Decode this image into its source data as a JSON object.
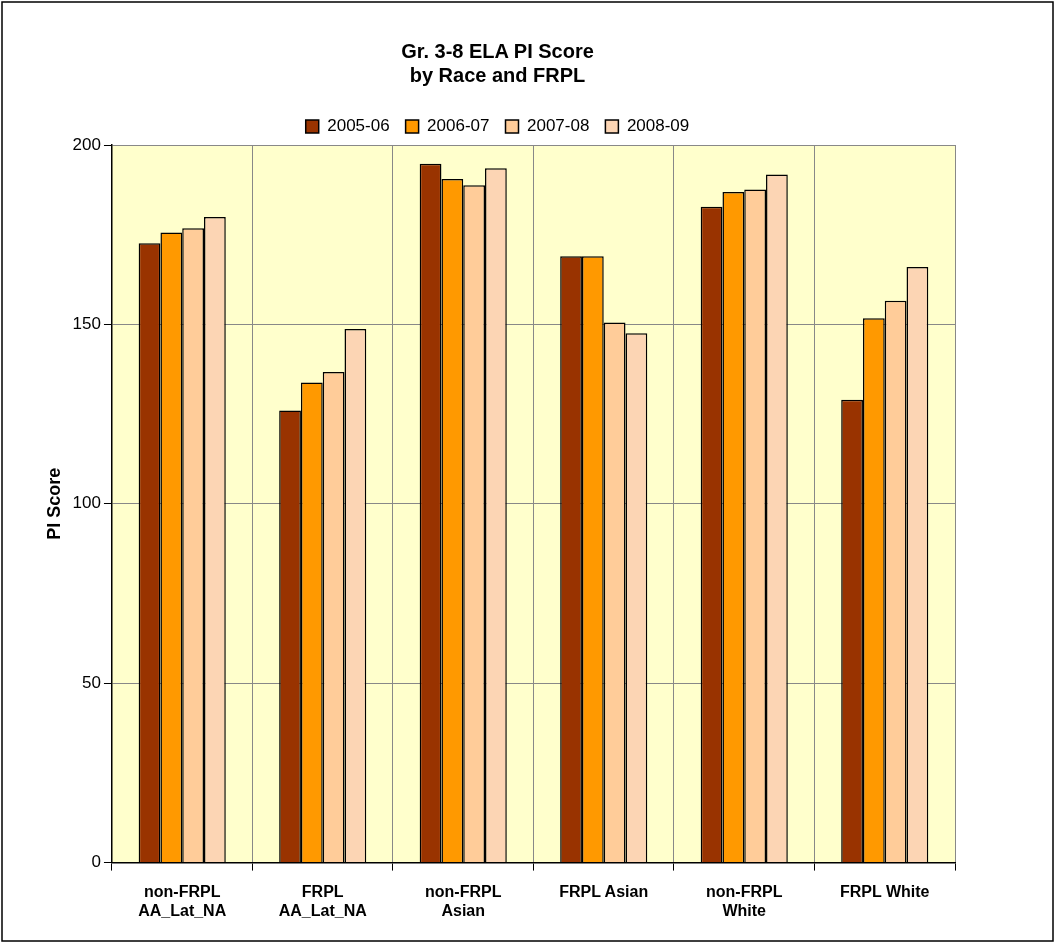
{
  "chart_data": {
    "type": "bar",
    "title": "Gr. 3-8 ELA PI Score\nby Race and FRPL",
    "ylabel": "PI Score",
    "categories": [
      "non-FRPL AA_Lat_NA",
      "FRPL AA_Lat_NA",
      "non-FRPL Asian",
      "FRPL Asian",
      "non-FRPL White",
      "FRPL White"
    ],
    "series": [
      {
        "name": "2005-06",
        "color": "#993300",
        "values": [
          172.6,
          126,
          194.8,
          169,
          182.8,
          129
        ]
      },
      {
        "name": "2006-07",
        "color": "#ff9900",
        "values": [
          175.6,
          133.8,
          190.5,
          169,
          186.9,
          151.7
        ]
      },
      {
        "name": "2007-08",
        "color": "#ffcc99",
        "values": [
          176.8,
          136.7,
          188.8,
          150.5,
          187.6,
          156.6
        ]
      },
      {
        "name": "2008-09",
        "color": "#fcd5b4",
        "values": [
          179.9,
          148.7,
          193.5,
          147.5,
          191.8,
          166
        ]
      }
    ],
    "ylim": [
      0,
      200
    ],
    "yticks": [
      0,
      50,
      100,
      150,
      200
    ],
    "grid": true,
    "legend": "top"
  }
}
